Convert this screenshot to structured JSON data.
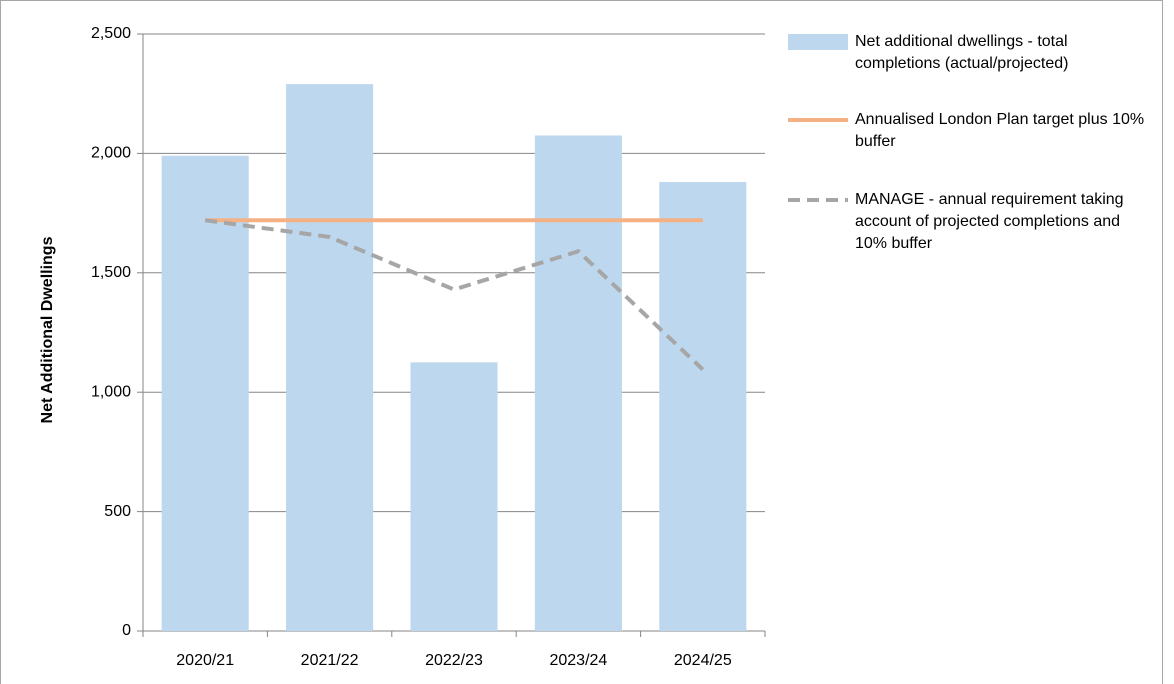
{
  "chart_data": {
    "type": "bar",
    "y_label": "Net Additional Dwellings",
    "categories": [
      "2020/21",
      "2021/22",
      "2022/23",
      "2023/24",
      "2024/25"
    ],
    "series": [
      {
        "name": "Net additional dwellings - total completions (actual/projected)",
        "type": "bar",
        "color": "#bdd7ee",
        "values": [
          1990,
          2290,
          1125,
          2075,
          1880
        ]
      },
      {
        "name": "Annualised London Plan target plus 10% buffer",
        "type": "line",
        "color": "#f4b183",
        "dashed": false,
        "values": [
          1720,
          1720,
          1720,
          1720,
          1720
        ]
      },
      {
        "name": "MANAGE - annual requirement taking account of projected completions and 10% buffer",
        "type": "line",
        "color": "#a6a6a6",
        "dashed": true,
        "values": [
          1720,
          1650,
          1430,
          1590,
          1095
        ]
      }
    ],
    "ylim": [
      0,
      2500
    ],
    "yticks": [
      0,
      500,
      {
        "value": 1000,
        "label": "1,000"
      },
      {
        "value": 1500,
        "label": "1,500"
      },
      {
        "value": 2000,
        "label": "2,000"
      },
      {
        "value": 2500,
        "label": "2,500"
      }
    ],
    "grid": true
  }
}
